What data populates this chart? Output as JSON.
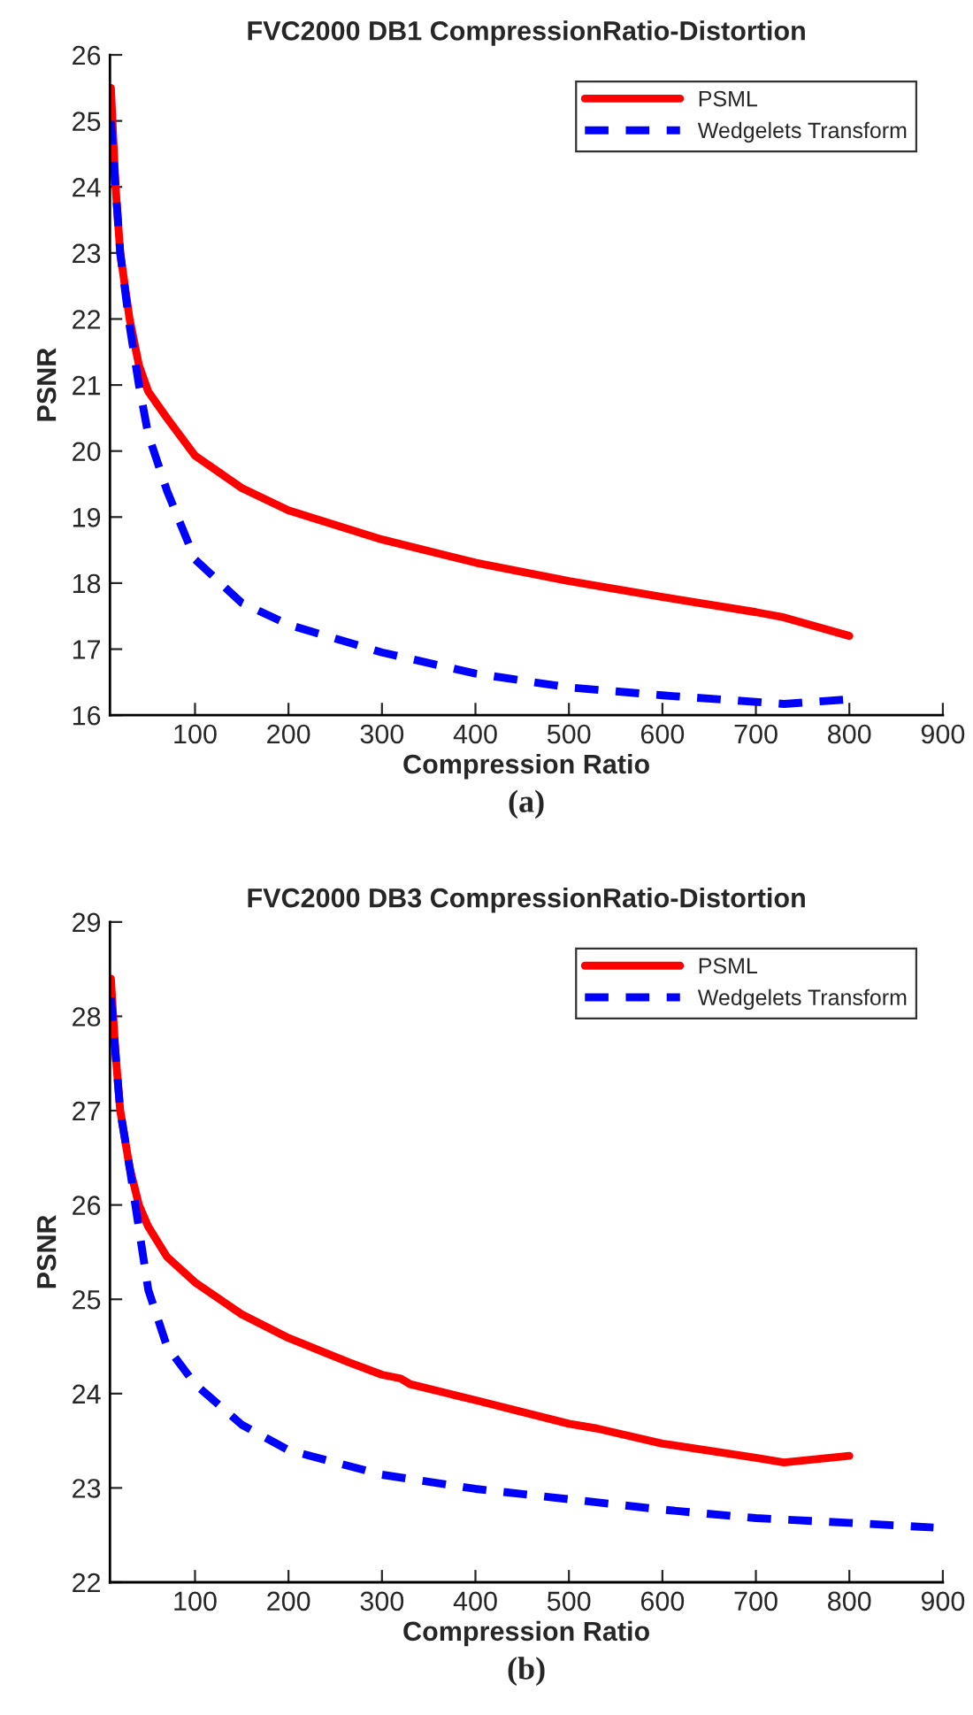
{
  "chart_data": [
    {
      "type": "line",
      "title": "FVC2000 DB1 CompressionRatio-Distortion",
      "xlabel": "Compression Ratio",
      "ylabel": "PSNR",
      "annotations": [
        "(a)"
      ],
      "xlim": [
        9,
        900
      ],
      "xticks": [
        100,
        200,
        300,
        400,
        500,
        600,
        700,
        800,
        900
      ],
      "ylim": [
        16,
        26
      ],
      "yticks": [
        16,
        17,
        18,
        19,
        20,
        21,
        22,
        23,
        24,
        25,
        26
      ],
      "grid": false,
      "legend": "top right",
      "marker": "none",
      "series": [
        {
          "name": "PSML",
          "color": "#ff0000",
          "line_style": "solid",
          "x": [
            10,
            15,
            20,
            30,
            40,
            50,
            70,
            100,
            150,
            200,
            300,
            400,
            500,
            600,
            700,
            730,
            800
          ],
          "values": [
            25.5,
            24.0,
            23.0,
            22.0,
            21.3,
            20.9,
            20.5,
            19.93,
            19.44,
            19.1,
            18.66,
            18.31,
            18.03,
            17.79,
            17.56,
            17.48,
            17.2
          ]
        },
        {
          "name": "Wedgelets Transform",
          "color": "#0000ff",
          "line_style": "dashed",
          "x": [
            10,
            15,
            20,
            30,
            40,
            50,
            70,
            100,
            150,
            200,
            300,
            400,
            500,
            600,
            730,
            800
          ],
          "values": [
            25.0,
            24.0,
            23.0,
            21.9,
            21.0,
            20.25,
            19.4,
            18.36,
            17.7,
            17.37,
            16.95,
            16.63,
            16.42,
            16.3,
            16.17,
            16.24
          ]
        }
      ]
    },
    {
      "type": "line",
      "title": "FVC2000 DB3 CompressionRatio-Distortion",
      "xlabel": "Compression Ratio",
      "ylabel": "PSNR",
      "annotations": [
        "(b)"
      ],
      "xlim": [
        9,
        900
      ],
      "xticks": [
        100,
        200,
        300,
        400,
        500,
        600,
        700,
        800,
        900
      ],
      "ylim": [
        22,
        29
      ],
      "yticks": [
        22,
        23,
        24,
        25,
        26,
        27,
        28,
        29
      ],
      "grid": false,
      "legend": "top right",
      "marker": "none",
      "series": [
        {
          "name": "PSML",
          "color": "#ff0000",
          "line_style": "solid",
          "x": [
            10,
            15,
            20,
            30,
            40,
            50,
            70,
            100,
            150,
            200,
            265,
            300,
            320,
            330,
            400,
            500,
            530,
            600,
            700,
            730,
            800
          ],
          "values": [
            28.4,
            27.6,
            27.0,
            26.4,
            26.0,
            25.77,
            25.45,
            25.18,
            24.84,
            24.59,
            24.33,
            24.2,
            24.16,
            24.1,
            23.93,
            23.68,
            23.63,
            23.47,
            23.32,
            23.27,
            23.34
          ]
        },
        {
          "name": "Wedgelets Transform",
          "color": "#0000ff",
          "line_style": "dashed",
          "x": [
            10,
            15,
            20,
            30,
            40,
            50,
            70,
            100,
            150,
            200,
            300,
            400,
            500,
            600,
            700,
            800,
            890
          ],
          "values": [
            28.2,
            27.6,
            27.0,
            26.4,
            25.75,
            25.1,
            24.5,
            24.1,
            23.67,
            23.4,
            23.14,
            22.99,
            22.88,
            22.77,
            22.68,
            22.63,
            22.58
          ]
        }
      ]
    }
  ]
}
